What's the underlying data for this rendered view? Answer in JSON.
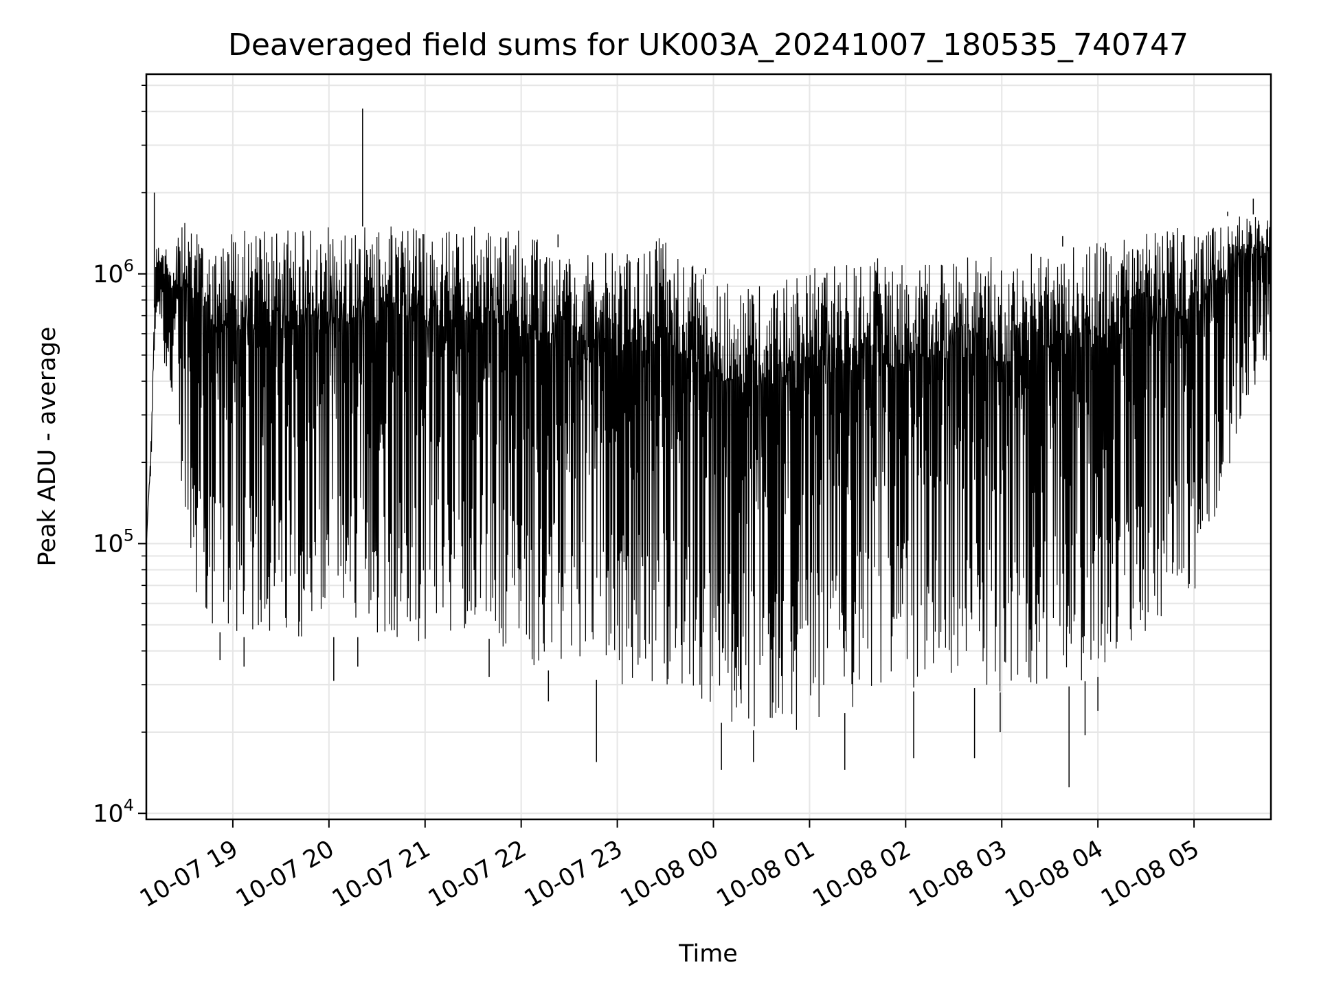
{
  "chart_data": {
    "type": "line",
    "title": "Deaveraged field sums for UK003A_20241007_180535_740747",
    "xlabel": "Time",
    "ylabel": "Peak ADU - average",
    "yscale": "log",
    "ylim": [
      9500,
      5500000
    ],
    "xlim": [
      "10-07 18:06",
      "10-08 05:48"
    ],
    "grid": true,
    "line_color": "#000000",
    "x_ticks": [
      {
        "label": "10-07 19",
        "t": "10-07 19:00"
      },
      {
        "label": "10-07 20",
        "t": "10-07 20:00"
      },
      {
        "label": "10-07 21",
        "t": "10-07 21:00"
      },
      {
        "label": "10-07 22",
        "t": "10-07 22:00"
      },
      {
        "label": "10-07 23",
        "t": "10-07 23:00"
      },
      {
        "label": "10-08 00",
        "t": "10-08 00:00"
      },
      {
        "label": "10-08 01",
        "t": "10-08 01:00"
      },
      {
        "label": "10-08 02",
        "t": "10-08 02:00"
      },
      {
        "label": "10-08 03",
        "t": "10-08 03:00"
      },
      {
        "label": "10-08 04",
        "t": "10-08 04:00"
      },
      {
        "label": "10-08 05",
        "t": "10-08 05:00"
      }
    ],
    "y_ticks": [
      {
        "base": "10",
        "exp": "4",
        "value": 10000
      },
      {
        "base": "10",
        "exp": "5",
        "value": 100000
      },
      {
        "base": "10",
        "exp": "6",
        "value": 1000000
      }
    ],
    "envelope": [
      {
        "t": "10-07 18:06",
        "max": 100000,
        "min": 100000
      },
      {
        "t": "10-07 18:09",
        "max": 250000,
        "min": 180000
      },
      {
        "t": "10-07 18:12",
        "max": 1300000,
        "min": 700000
      },
      {
        "t": "10-07 18:15",
        "max": 1300000,
        "min": 600000
      },
      {
        "t": "10-07 18:20",
        "max": 1200000,
        "min": 350000
      },
      {
        "t": "10-07 18:25",
        "max": 1400000,
        "min": 200000
      },
      {
        "t": "10-07 18:30",
        "max": 1550000,
        "min": 80000
      },
      {
        "t": "10-07 18:40",
        "max": 1550000,
        "min": 50000
      },
      {
        "t": "10-07 19:00",
        "max": 1450000,
        "min": 45000
      },
      {
        "t": "10-07 19:30",
        "max": 1450000,
        "min": 45000
      },
      {
        "t": "10-07 20:00",
        "max": 1500000,
        "min": 45000
      },
      {
        "t": "10-07 20:30",
        "max": 1500000,
        "min": 45000
      },
      {
        "t": "10-07 21:00",
        "max": 1500000,
        "min": 42000
      },
      {
        "t": "10-07 21:30",
        "max": 1500000,
        "min": 50000
      },
      {
        "t": "10-07 22:00",
        "max": 1450000,
        "min": 35000
      },
      {
        "t": "10-07 22:30",
        "max": 1200000,
        "min": 33000
      },
      {
        "t": "10-07 23:00",
        "max": 1200000,
        "min": 30000
      },
      {
        "t": "10-07 23:30",
        "max": 1450000,
        "min": 30000
      },
      {
        "t": "10-07 23:50",
        "max": 1050000,
        "min": 28000
      },
      {
        "t": "10-08 00:00",
        "max": 950000,
        "min": 22000
      },
      {
        "t": "10-08 00:30",
        "max": 900000,
        "min": 20000
      },
      {
        "t": "10-08 01:00",
        "max": 1050000,
        "min": 20000
      },
      {
        "t": "10-08 01:30",
        "max": 1150000,
        "min": 25000
      },
      {
        "t": "10-08 02:00",
        "max": 1150000,
        "min": 28000
      },
      {
        "t": "10-08 02:30",
        "max": 1200000,
        "min": 30000
      },
      {
        "t": "10-08 03:00",
        "max": 1150000,
        "min": 28000
      },
      {
        "t": "10-08 03:30",
        "max": 1250000,
        "min": 28000
      },
      {
        "t": "10-08 04:00",
        "max": 1300000,
        "min": 32000
      },
      {
        "t": "10-08 04:30",
        "max": 1450000,
        "min": 45000
      },
      {
        "t": "10-08 05:00",
        "max": 1500000,
        "min": 60000
      },
      {
        "t": "10-08 05:30",
        "max": 1700000,
        "min": 300000
      },
      {
        "t": "10-08 05:48",
        "max": 1600000,
        "min": 500000
      }
    ],
    "spikes_high": [
      {
        "t": "10-07 18:11",
        "value": 2000000
      },
      {
        "t": "10-07 20:21",
        "value": 4100000
      },
      {
        "t": "10-07 22:23",
        "value": 1400000
      },
      {
        "t": "10-07 23:55",
        "value": 1050000
      },
      {
        "t": "10-08 03:38",
        "value": 1380000
      },
      {
        "t": "10-08 05:21",
        "value": 1700000
      },
      {
        "t": "10-08 05:37",
        "value": 1900000
      }
    ],
    "spikes_low": [
      {
        "t": "10-07 18:52",
        "value": 37000
      },
      {
        "t": "10-07 19:07",
        "value": 35000
      },
      {
        "t": "10-07 20:03",
        "value": 31000
      },
      {
        "t": "10-07 20:18",
        "value": 35000
      },
      {
        "t": "10-07 21:40",
        "value": 32000
      },
      {
        "t": "10-07 22:17",
        "value": 26000
      },
      {
        "t": "10-07 22:47",
        "value": 15500
      },
      {
        "t": "10-08 00:05",
        "value": 14500
      },
      {
        "t": "10-08 00:25",
        "value": 15500
      },
      {
        "t": "10-08 01:22",
        "value": 14500
      },
      {
        "t": "10-08 02:05",
        "value": 16000
      },
      {
        "t": "10-08 02:43",
        "value": 16000
      },
      {
        "t": "10-08 02:59",
        "value": 20000
      },
      {
        "t": "10-08 03:42",
        "value": 12500
      },
      {
        "t": "10-08 03:52",
        "value": 19500
      },
      {
        "t": "10-08 04:00",
        "value": 24000
      }
    ]
  }
}
